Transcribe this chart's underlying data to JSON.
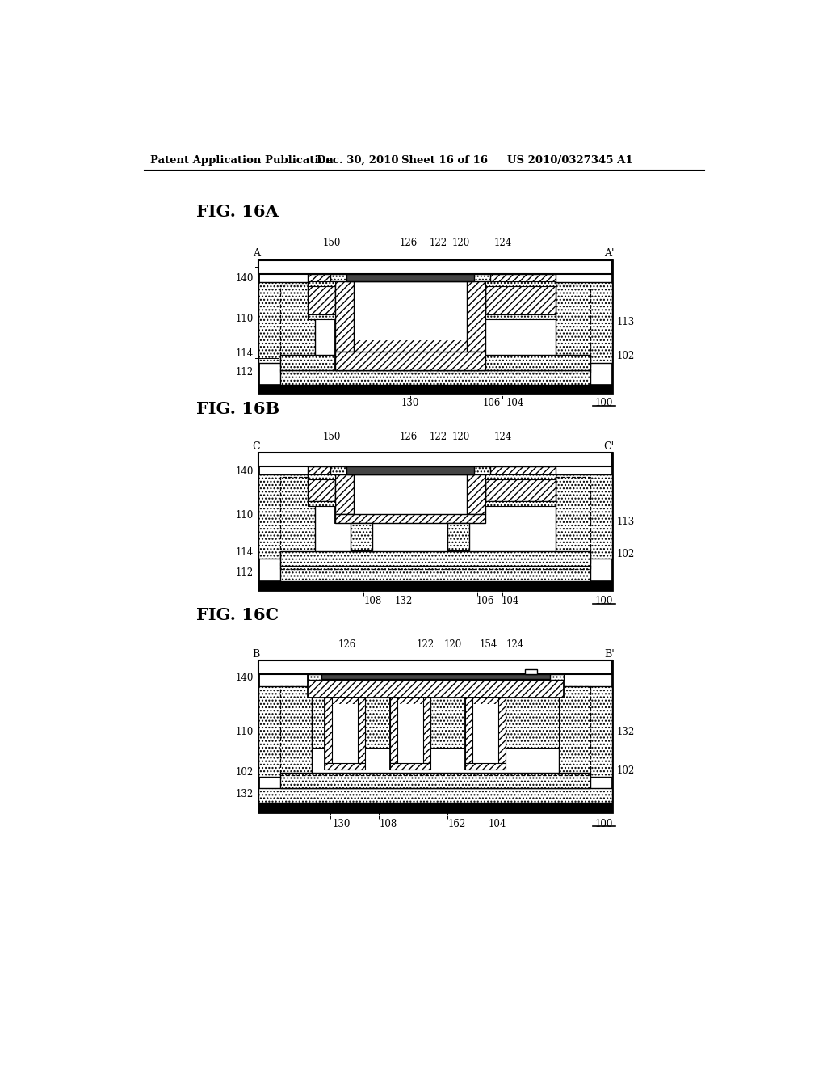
{
  "header_left": "Patent Application Publication",
  "header_mid1": "Dec. 30, 2010",
  "header_mid2": "Sheet 16 of 16",
  "header_right": "US 2010/0327345 A1",
  "fig_a_label": "FIG. 16A",
  "fig_b_label": "FIG. 16B",
  "fig_c_label": "FIG. 16C",
  "bg": "#ffffff"
}
